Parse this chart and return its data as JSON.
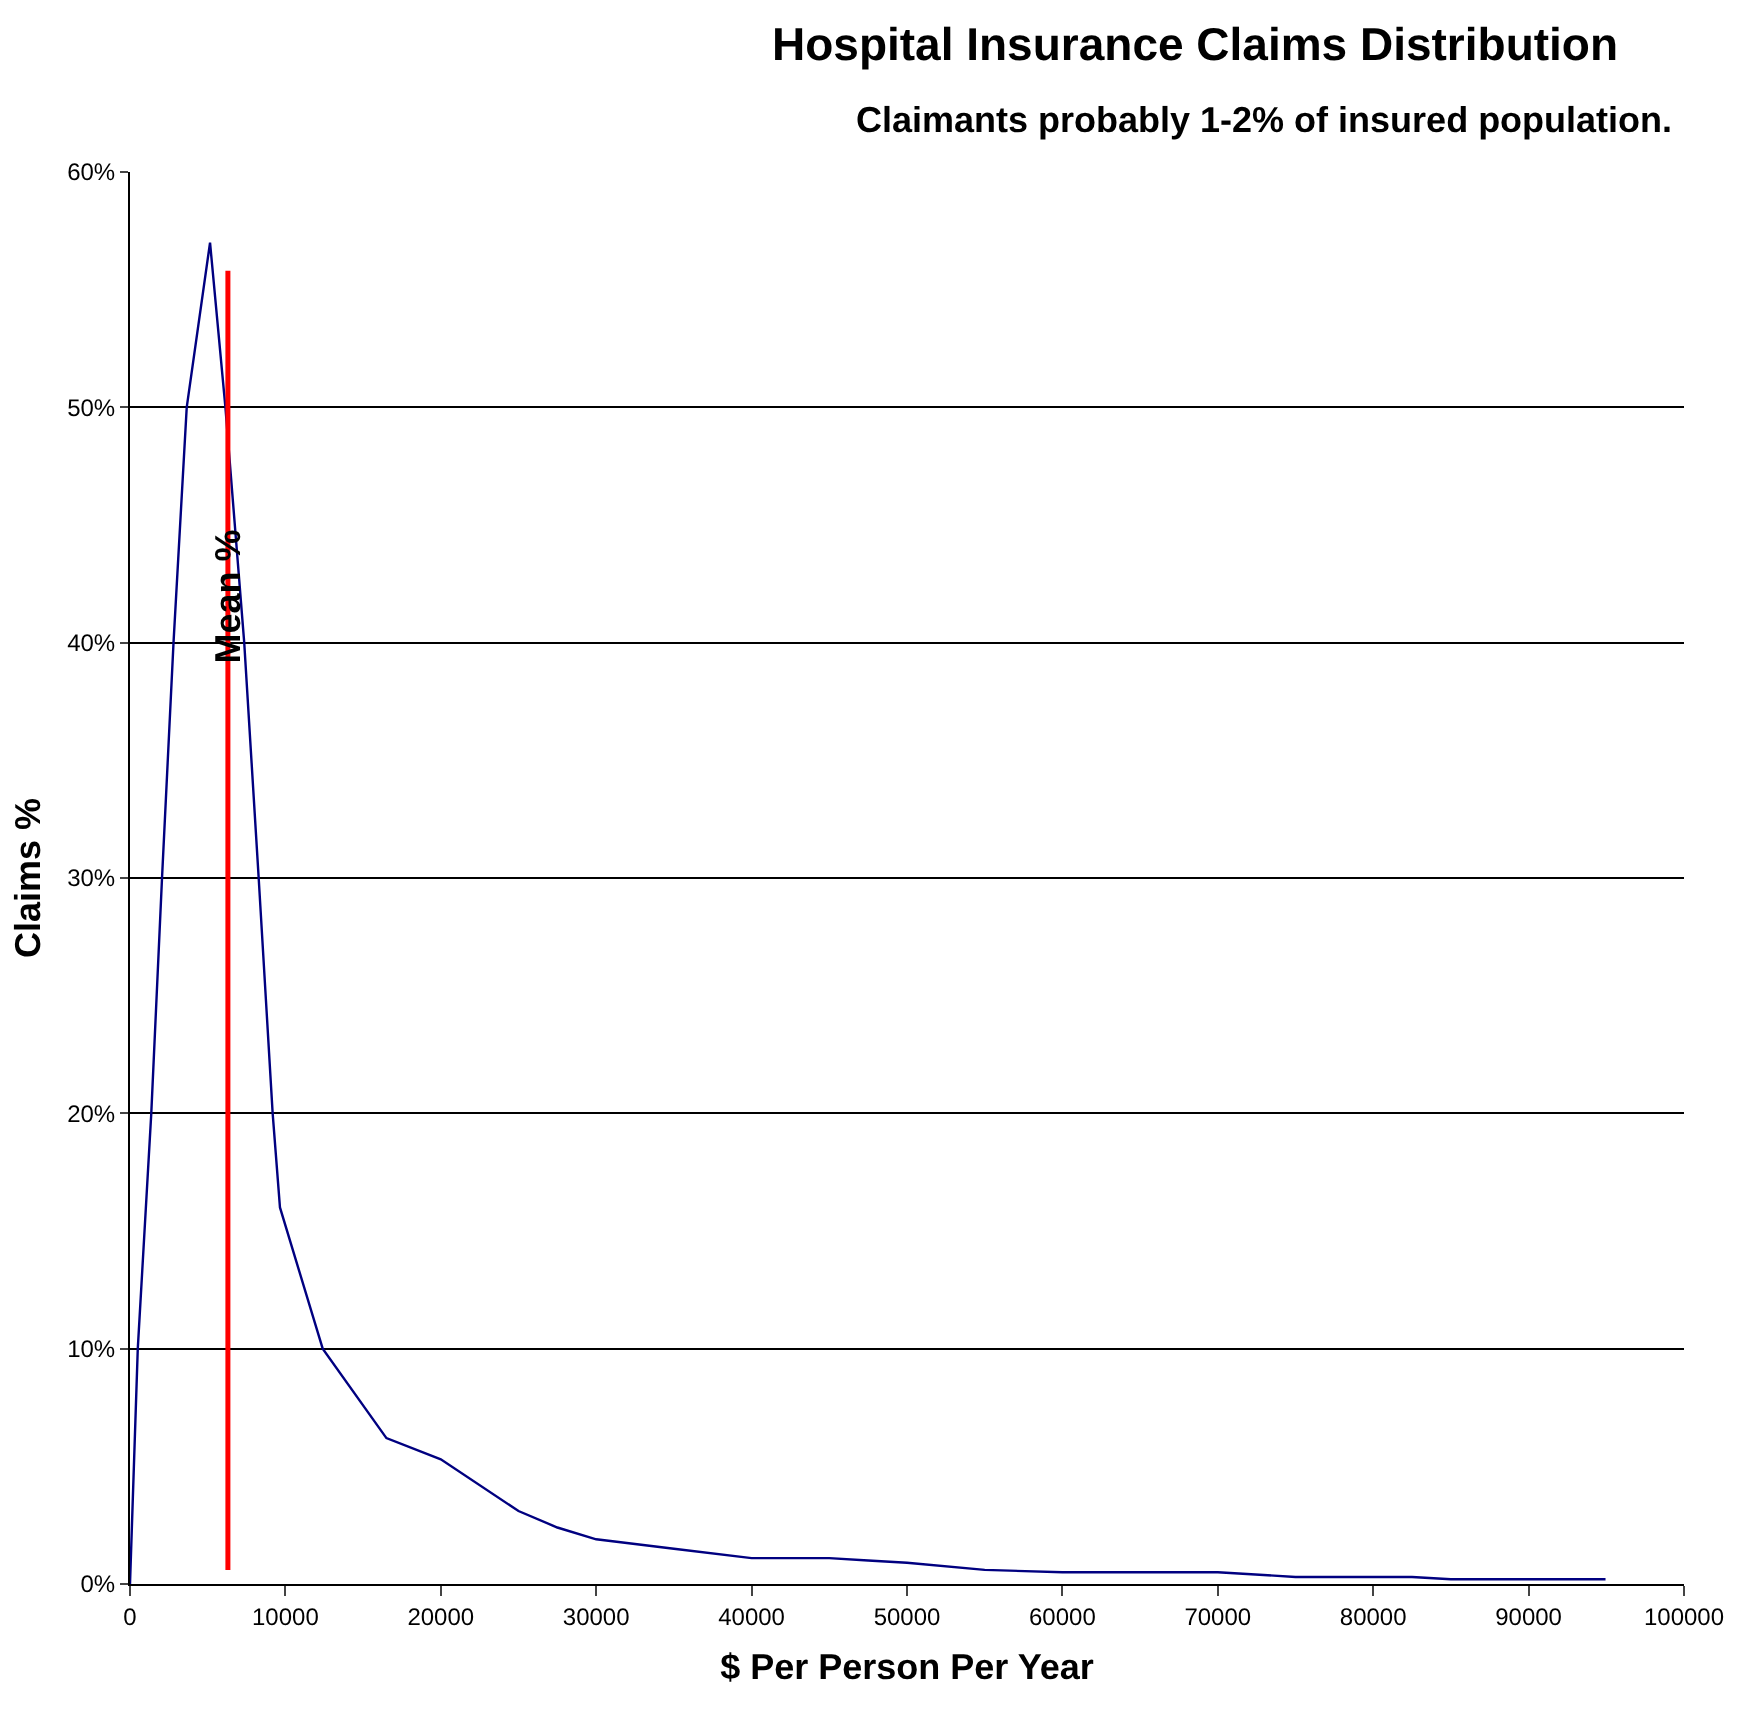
{
  "chart_data": {
    "type": "line",
    "title": "Hospital Insurance Claims Distribution",
    "subtitle": "Claimants probably 1-2% of insured population.",
    "xlabel": "$ Per Person Per Year",
    "ylabel": "Claims %",
    "x": [
      0,
      500,
      1370,
      2060,
      2800,
      3650,
      5150,
      6140,
      7350,
      8280,
      9180,
      9650,
      12400,
      16500,
      20000,
      25000,
      27500,
      30000,
      35000,
      40000,
      45000,
      47500,
      50000,
      55000,
      60000,
      70000,
      75000,
      82500,
      85000,
      94950
    ],
    "series": [
      {
        "color": "#000080",
        "values": [
          0,
          10,
          20,
          30,
          40,
          50,
          57,
          50,
          40,
          30,
          20,
          16,
          10,
          6.2,
          5.3,
          3.1,
          2.4,
          1.9,
          1.5,
          1.1,
          1.1,
          1.0,
          0.9,
          0.6,
          0.5,
          0.5,
          0.3,
          0.3,
          0.2,
          0.2
        ]
      }
    ],
    "xlim": [
      0,
      100000
    ],
    "xticks": [
      0,
      10000,
      20000,
      30000,
      40000,
      50000,
      60000,
      70000,
      80000,
      90000,
      100000
    ],
    "ylim": [
      0,
      60
    ],
    "yticks": [
      {
        "value": 0,
        "label": "0%"
      },
      {
        "value": 10,
        "label": "10%"
      },
      {
        "value": 20,
        "label": "20%"
      },
      {
        "value": 30,
        "label": "30%"
      },
      {
        "value": 40,
        "label": "40%"
      },
      {
        "value": 50,
        "label": "50%"
      },
      {
        "value": 60,
        "label": "60%"
      }
    ],
    "ref_lines": [
      {
        "axis": "x",
        "value": 6300,
        "label": "Mean %",
        "color": "#ff0000"
      }
    ],
    "grid": "y",
    "marker": "none",
    "line_style": "solid"
  }
}
